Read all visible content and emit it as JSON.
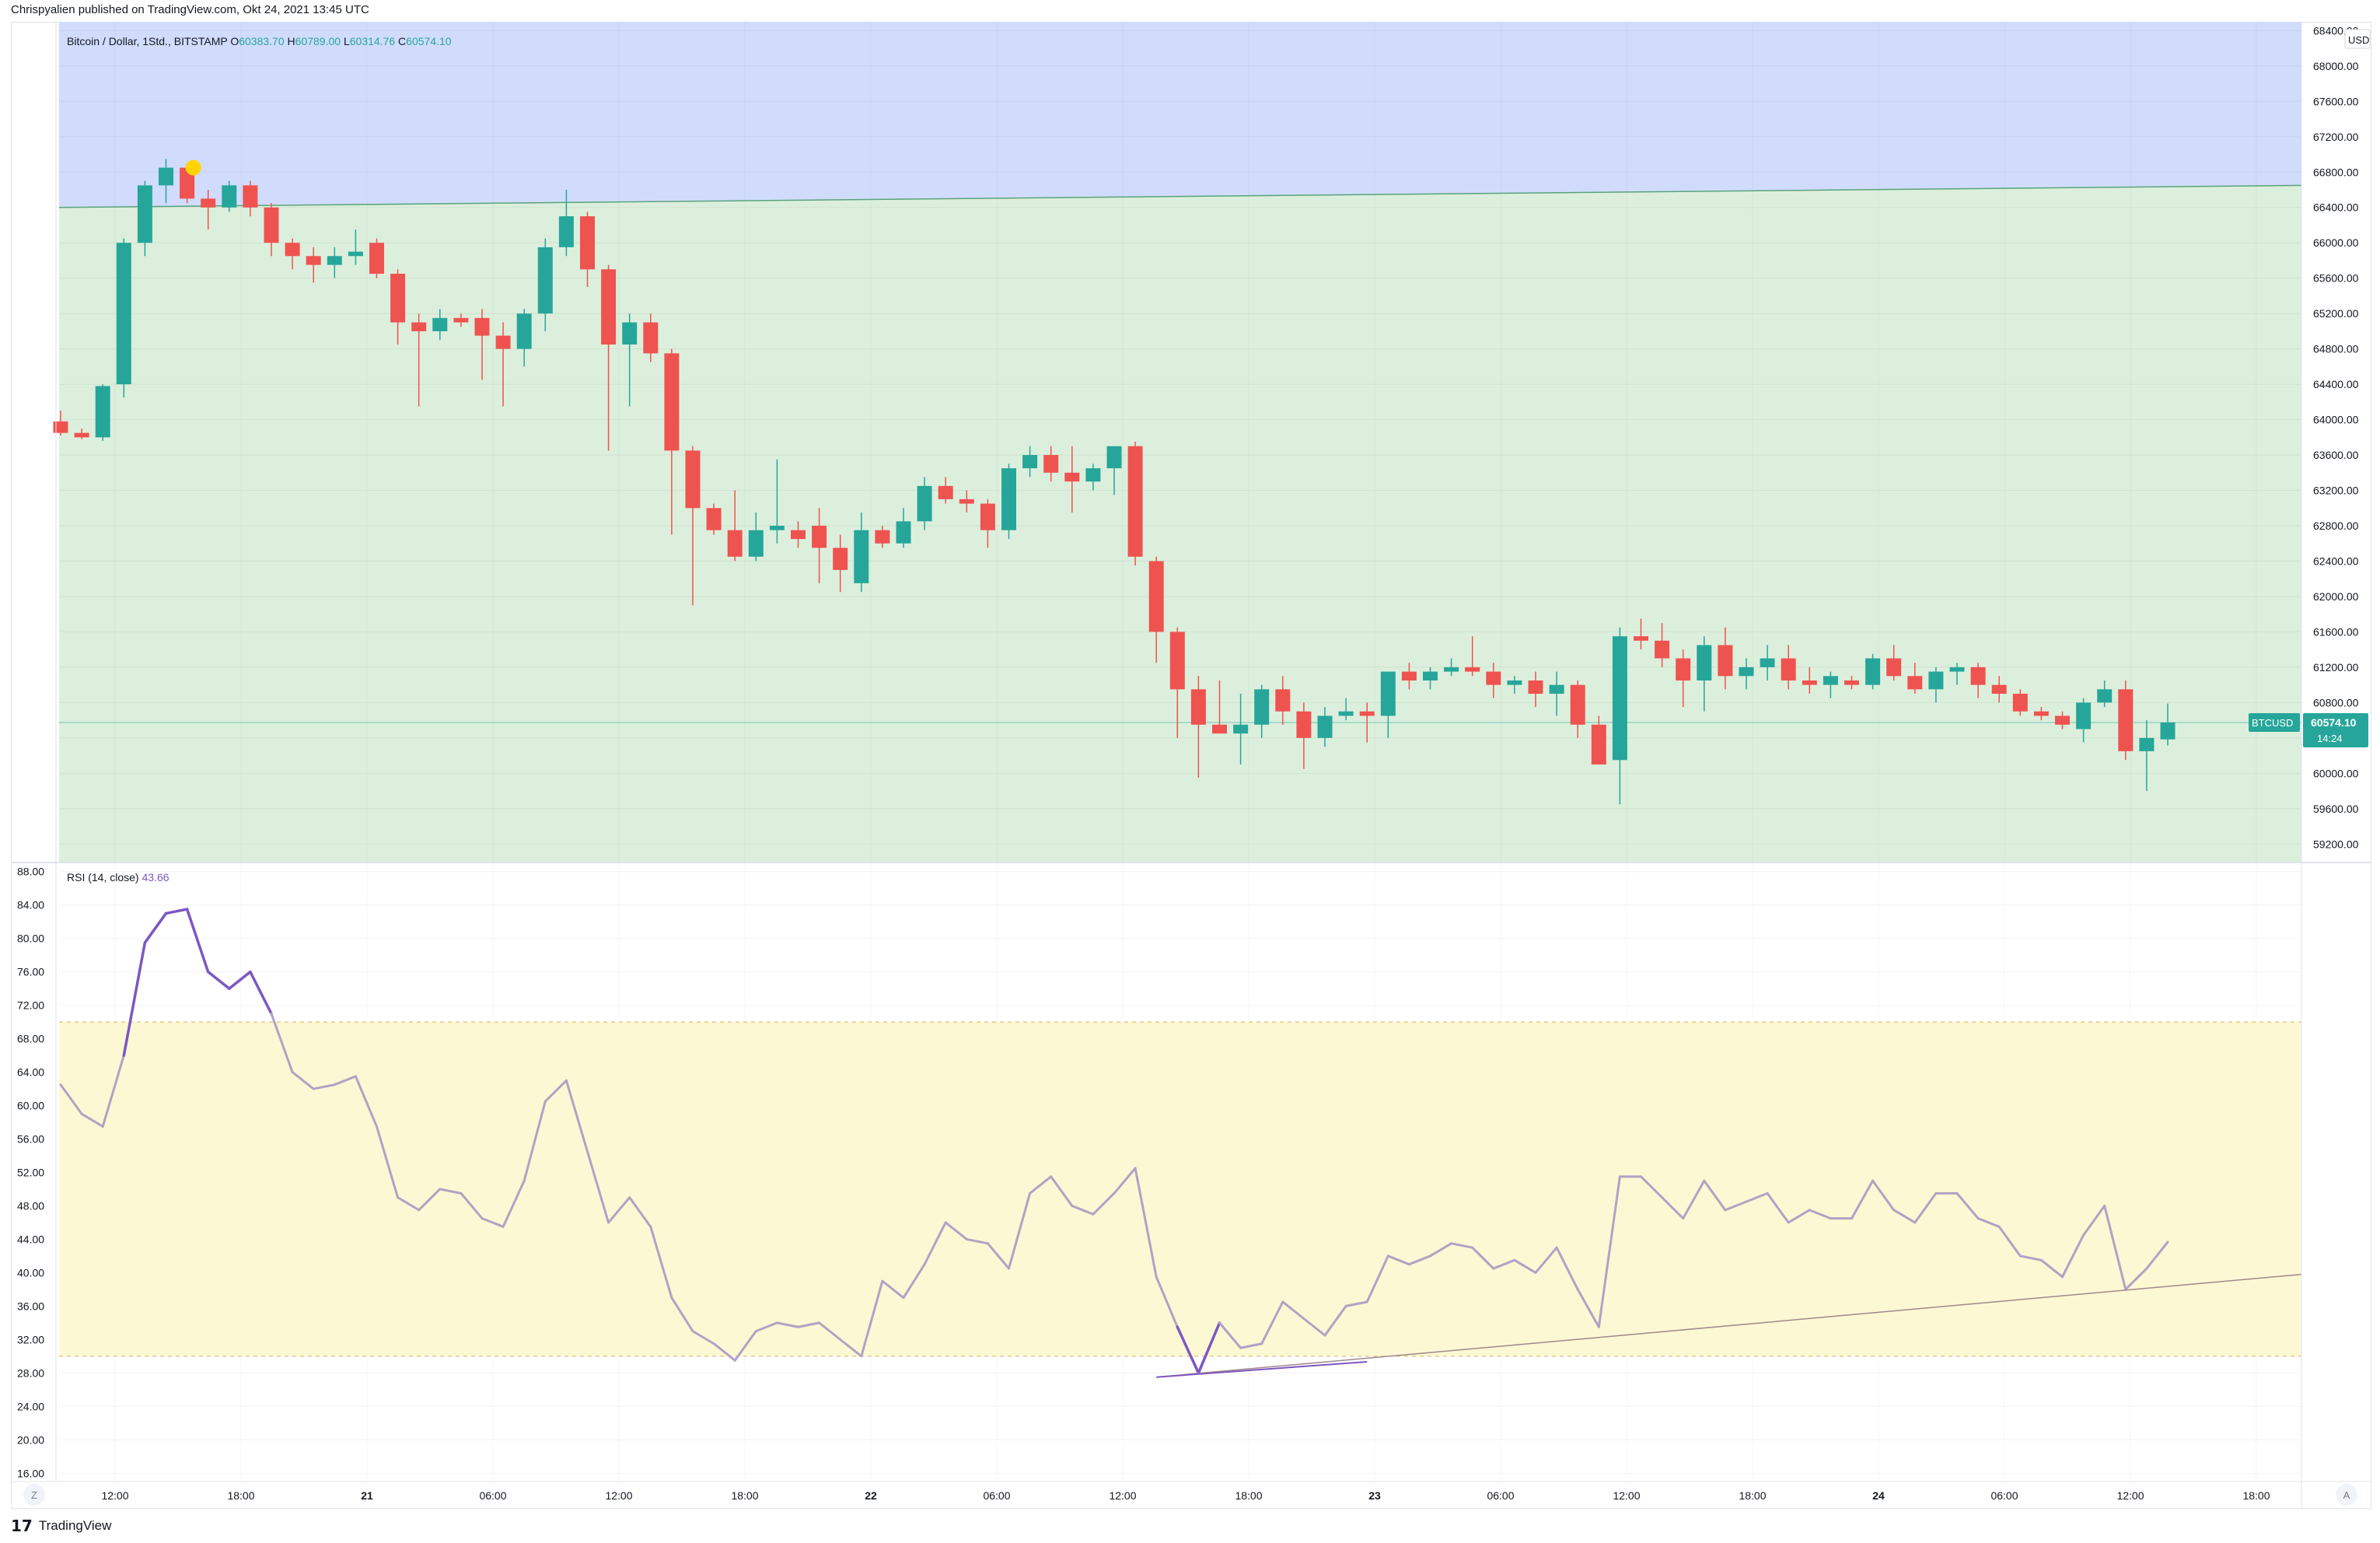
{
  "header": {
    "published": "Chrispyalien published on TradingView.com, Okt 24, 2021 13:45 UTC"
  },
  "footer": {
    "brand": "TradingView",
    "mark": "17"
  },
  "corner_buttons": {
    "left": "Z",
    "right": "A"
  },
  "colors": {
    "up": "#26a69a",
    "down": "#ef5350",
    "zone_upper": "#d1dcfc",
    "zone_lower": "#dcefdc",
    "rsi_band": "#fdf8d4",
    "rsi_line": "#b2a2c4",
    "rsi_highlight": "#7e57c2",
    "trendline_price": "#5aa37a",
    "trendline_rsi": "#a1888a",
    "marker": "#ffd400"
  },
  "legend": {
    "symbol": "Bitcoin / Dollar, 1Std., BITSTAMP",
    "o_label": "O",
    "o": "60383.70",
    "h_label": "H",
    "h": "60789.00",
    "l_label": "L",
    "l": "60314.76",
    "c_label": "C",
    "c": "60574.10"
  },
  "price_badge": {
    "symbol": "BTCUSD",
    "price": "60574.10",
    "countdown": "14:24"
  },
  "currency": "USD",
  "rsi_legend": {
    "label": "RSI (14, close)",
    "value": "43.66"
  },
  "chart_data": [
    {
      "type": "candlestick",
      "title": "Bitcoin / Dollar, 1Std., BITSTAMP",
      "ylim": [
        59000,
        68500
      ],
      "y_ticks": [
        "59200.00",
        "59600.00",
        "60000.00",
        "60400.00",
        "60800.00",
        "61200.00",
        "61600.00",
        "62000.00",
        "62400.00",
        "62800.00",
        "63200.00",
        "63600.00",
        "64000.00",
        "64400.00",
        "64800.00",
        "65200.00",
        "65600.00",
        "66000.00",
        "66400.00",
        "66800.00",
        "67200.00",
        "67600.00",
        "68000.00",
        "68400.00"
      ],
      "x_ticks": [
        "12:00",
        "18:00",
        "21",
        "06:00",
        "12:00",
        "18:00",
        "22",
        "06:00",
        "12:00",
        "18:00",
        "23",
        "06:00",
        "12:00",
        "18:00",
        "24",
        "06:00",
        "12:00",
        "18:00"
      ],
      "candles": [
        [
          63980,
          64100,
          63820,
          63850
        ],
        [
          63850,
          63900,
          63780,
          63800
        ],
        [
          63800,
          64400,
          63760,
          64380
        ],
        [
          64400,
          66050,
          64250,
          66000
        ],
        [
          66000,
          66700,
          65850,
          66650
        ],
        [
          66650,
          66950,
          66450,
          66850
        ],
        [
          66850,
          66900,
          66450,
          66500
        ],
        [
          66500,
          66600,
          66150,
          66400
        ],
        [
          66400,
          66700,
          66350,
          66650
        ],
        [
          66650,
          66700,
          66300,
          66400
        ],
        [
          66400,
          66450,
          65850,
          66000
        ],
        [
          66000,
          66050,
          65700,
          65850
        ],
        [
          65850,
          65950,
          65550,
          65750
        ],
        [
          65750,
          65950,
          65600,
          65850
        ],
        [
          65850,
          66150,
          65750,
          65900
        ],
        [
          66000,
          66050,
          65600,
          65650
        ],
        [
          65650,
          65700,
          64850,
          65100
        ],
        [
          65100,
          65200,
          64150,
          65000
        ],
        [
          65000,
          65250,
          64900,
          65150
        ],
        [
          65150,
          65200,
          65050,
          65100
        ],
        [
          65150,
          65250,
          64450,
          64950
        ],
        [
          64950,
          65100,
          64150,
          64800
        ],
        [
          64800,
          65250,
          64600,
          65200
        ],
        [
          65200,
          66050,
          65000,
          65950
        ],
        [
          65950,
          66600,
          65850,
          66300
        ],
        [
          66300,
          66350,
          65500,
          65700
        ],
        [
          65700,
          65750,
          63650,
          64850
        ],
        [
          64850,
          65200,
          64150,
          65100
        ],
        [
          65100,
          65200,
          64650,
          64750
        ],
        [
          64750,
          64800,
          62700,
          63650
        ],
        [
          63650,
          63700,
          61900,
          63000
        ],
        [
          63000,
          63050,
          62700,
          62750
        ],
        [
          62750,
          63200,
          62400,
          62450
        ],
        [
          62450,
          62950,
          62400,
          62750
        ],
        [
          62750,
          63550,
          62600,
          62800
        ],
        [
          62750,
          62850,
          62550,
          62650
        ],
        [
          62800,
          63000,
          62150,
          62550
        ],
        [
          62550,
          62700,
          62050,
          62300
        ],
        [
          62150,
          62950,
          62050,
          62750
        ],
        [
          62750,
          62800,
          62550,
          62600
        ],
        [
          62600,
          63000,
          62550,
          62850
        ],
        [
          62850,
          63350,
          62750,
          63250
        ],
        [
          63250,
          63350,
          63050,
          63100
        ],
        [
          63100,
          63200,
          62950,
          63050
        ],
        [
          63050,
          63100,
          62550,
          62750
        ],
        [
          62750,
          63500,
          62650,
          63450
        ],
        [
          63450,
          63700,
          63350,
          63600
        ],
        [
          63600,
          63700,
          63300,
          63400
        ],
        [
          63400,
          63700,
          62950,
          63300
        ],
        [
          63300,
          63500,
          63200,
          63450
        ],
        [
          63450,
          63700,
          63150,
          63700
        ],
        [
          63700,
          63750,
          62350,
          62450
        ],
        [
          62400,
          62450,
          61250,
          61600
        ],
        [
          61600,
          61650,
          60400,
          60950
        ],
        [
          60950,
          61100,
          59950,
          60550
        ],
        [
          60550,
          61050,
          60450,
          60450
        ],
        [
          60450,
          60900,
          60100,
          60550
        ],
        [
          60550,
          61000,
          60400,
          60950
        ],
        [
          60950,
          61100,
          60550,
          60700
        ],
        [
          60700,
          60800,
          60050,
          60400
        ],
        [
          60400,
          60750,
          60300,
          60650
        ],
        [
          60650,
          60850,
          60600,
          60700
        ],
        [
          60700,
          60800,
          60350,
          60650
        ],
        [
          60650,
          61150,
          60400,
          61150
        ],
        [
          61150,
          61250,
          60950,
          61050
        ],
        [
          61050,
          61200,
          60950,
          61150
        ],
        [
          61150,
          61300,
          61100,
          61200
        ],
        [
          61200,
          61550,
          61100,
          61150
        ],
        [
          61150,
          61250,
          60850,
          61000
        ],
        [
          61000,
          61100,
          60900,
          61050
        ],
        [
          61050,
          61150,
          60750,
          60900
        ],
        [
          60900,
          61150,
          60650,
          61000
        ],
        [
          61000,
          61050,
          60400,
          60550
        ],
        [
          60550,
          60650,
          60100,
          60100
        ],
        [
          60150,
          61650,
          59650,
          61550
        ],
        [
          61550,
          61750,
          61400,
          61500
        ],
        [
          61500,
          61700,
          61200,
          61300
        ],
        [
          61300,
          61400,
          60750,
          61050
        ],
        [
          61050,
          61550,
          60700,
          61450
        ],
        [
          61450,
          61650,
          60950,
          61100
        ],
        [
          61100,
          61300,
          60950,
          61200
        ],
        [
          61200,
          61450,
          61050,
          61300
        ],
        [
          61300,
          61450,
          60950,
          61050
        ],
        [
          61050,
          61200,
          60900,
          61000
        ],
        [
          61000,
          61150,
          60850,
          61100
        ],
        [
          61050,
          61100,
          60950,
          61000
        ],
        [
          61000,
          61350,
          60950,
          61300
        ],
        [
          61300,
          61450,
          61050,
          61100
        ],
        [
          61100,
          61250,
          60900,
          60950
        ],
        [
          60950,
          61200,
          60800,
          61150
        ],
        [
          61150,
          61250,
          61000,
          61200
        ],
        [
          61200,
          61250,
          60850,
          61000
        ],
        [
          61000,
          61100,
          60800,
          60900
        ],
        [
          60900,
          60950,
          60650,
          60700
        ],
        [
          60700,
          60750,
          60600,
          60650
        ],
        [
          60650,
          60700,
          60500,
          60550
        ],
        [
          60500,
          60850,
          60350,
          60800
        ],
        [
          60800,
          61050,
          60750,
          60950
        ],
        [
          60950,
          61050,
          60150,
          60250
        ],
        [
          60250,
          60600,
          59800,
          60400
        ],
        [
          60383.7,
          60789.0,
          60314.76,
          60574.1
        ]
      ],
      "upper_zone_boundary": {
        "start": 66400,
        "end": 66650
      },
      "current_price": 60574.1,
      "marker": {
        "candle_index": 6,
        "price": 66850
      }
    },
    {
      "type": "line",
      "title": "RSI (14, close)",
      "ylim": [
        15,
        89
      ],
      "y_ticks": [
        "16.00",
        "20.00",
        "24.00",
        "28.00",
        "32.00",
        "36.00",
        "40.00",
        "44.00",
        "48.00",
        "52.00",
        "56.00",
        "60.00",
        "64.00",
        "68.00",
        "72.00",
        "76.00",
        "80.00",
        "84.00",
        "88.00"
      ],
      "band": [
        30,
        70
      ],
      "values": [
        62.5,
        59,
        57.5,
        66,
        79.5,
        83,
        83.5,
        76,
        74,
        76,
        71,
        64,
        62,
        62.5,
        63.5,
        57.5,
        49,
        47.5,
        50,
        49.5,
        46.5,
        45.5,
        51,
        60.5,
        63,
        54.5,
        46,
        49,
        45.5,
        37,
        33,
        31.5,
        29.5,
        33,
        34,
        33.5,
        34,
        32,
        30,
        39,
        37,
        41,
        46,
        44,
        43.5,
        40.5,
        49.5,
        51.5,
        48,
        47,
        49.5,
        52.5,
        39.5,
        33.5,
        28,
        34,
        31,
        31.5,
        36.5,
        34.5,
        32.5,
        36,
        36.5,
        42,
        41,
        42,
        43.5,
        43,
        40.5,
        41.5,
        40,
        43,
        38,
        33.5,
        51.5,
        51.5,
        49,
        46.5,
        51,
        47.5,
        48.5,
        49.5,
        46,
        47.5,
        46.5,
        46.5,
        51,
        47.5,
        46,
        49.5,
        49.5,
        46.5,
        45.5,
        42,
        41.5,
        39.5,
        44.5,
        48,
        38,
        40.5,
        43.66
      ],
      "trendline": {
        "start_index": 52,
        "start": 27.5,
        "end_index": 119,
        "end": 39.8
      }
    }
  ]
}
